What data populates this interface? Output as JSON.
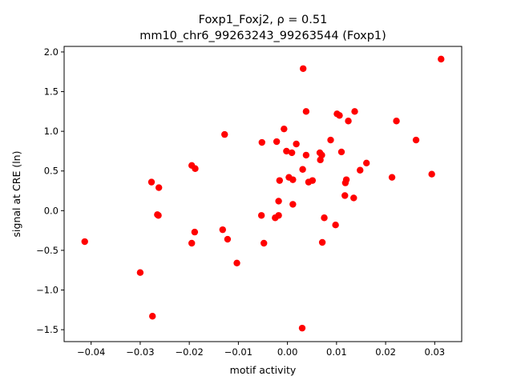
{
  "chart_data": {
    "type": "scatter",
    "title_line1": "Foxp1_Foxj2, ρ = 0.51",
    "title_line2": "mm10_chr6_99263243_99263544 (Foxp1)",
    "xlabel": "motif activity",
    "ylabel": "signal at CRE (ln)",
    "xlim": [
      -0.0455,
      0.0355
    ],
    "ylim": [
      -1.65,
      2.07
    ],
    "xticks": [
      -0.04,
      -0.03,
      -0.02,
      -0.01,
      0.0,
      0.01,
      0.02,
      0.03
    ],
    "xtick_labels": [
      "−0.04",
      "−0.03",
      "−0.02",
      "−0.01",
      "0.00",
      "0.01",
      "0.02",
      "0.03"
    ],
    "yticks": [
      -1.5,
      -1.0,
      -0.5,
      0.0,
      0.5,
      1.0,
      1.5,
      2.0
    ],
    "ytick_labels": [
      "−1.5",
      "−1.0",
      "−0.5",
      "0.0",
      "0.5",
      "1.0",
      "1.5",
      "2.0"
    ],
    "grid": false,
    "marker_color": "#ff0000",
    "series": [
      {
        "points": [
          [
            -0.0413,
            -0.39
          ],
          [
            -0.03,
            -0.78
          ],
          [
            -0.0275,
            -1.33
          ],
          [
            -0.0277,
            0.36
          ],
          [
            -0.0265,
            -0.05
          ],
          [
            -0.0263,
            -0.06
          ],
          [
            -0.0262,
            0.29
          ],
          [
            -0.0195,
            0.57
          ],
          [
            -0.0188,
            0.53
          ],
          [
            -0.0195,
            -0.41
          ],
          [
            -0.0189,
            -0.27
          ],
          [
            -0.0132,
            -0.24
          ],
          [
            -0.0128,
            0.96
          ],
          [
            -0.0122,
            -0.36
          ],
          [
            -0.0103,
            -0.66
          ],
          [
            -0.0052,
            0.86
          ],
          [
            -0.0053,
            -0.06
          ],
          [
            -0.0048,
            -0.41
          ],
          [
            -0.0025,
            -0.09
          ],
          [
            -0.0022,
            0.87
          ],
          [
            -0.0018,
            -0.06
          ],
          [
            -0.0018,
            0.12
          ],
          [
            -0.0016,
            0.38
          ],
          [
            -0.0007,
            1.03
          ],
          [
            -0.0002,
            0.75
          ],
          [
            0.0003,
            0.42
          ],
          [
            0.0009,
            0.73
          ],
          [
            0.0011,
            0.39
          ],
          [
            0.0011,
            0.08
          ],
          [
            0.0018,
            0.84
          ],
          [
            0.003,
            -1.48
          ],
          [
            0.0031,
            0.52
          ],
          [
            0.0032,
            1.79
          ],
          [
            0.0038,
            1.25
          ],
          [
            0.0038,
            0.7
          ],
          [
            0.0043,
            0.36
          ],
          [
            0.0051,
            0.38
          ],
          [
            0.0066,
            0.73
          ],
          [
            0.0067,
            0.64
          ],
          [
            0.007,
            0.7
          ],
          [
            0.0071,
            -0.4
          ],
          [
            0.0075,
            -0.09
          ],
          [
            0.0088,
            0.89
          ],
          [
            0.0098,
            -0.18
          ],
          [
            0.0101,
            1.22
          ],
          [
            0.0106,
            1.2
          ],
          [
            0.011,
            0.74
          ],
          [
            0.0117,
            0.19
          ],
          [
            0.0118,
            0.35
          ],
          [
            0.012,
            0.39
          ],
          [
            0.0124,
            1.13
          ],
          [
            0.0135,
            0.16
          ],
          [
            0.0137,
            1.25
          ],
          [
            0.0148,
            0.51
          ],
          [
            0.0161,
            0.6
          ],
          [
            0.0213,
            0.42
          ],
          [
            0.0222,
            1.13
          ],
          [
            0.0262,
            0.89
          ],
          [
            0.0294,
            0.46
          ],
          [
            0.0313,
            1.91
          ]
        ]
      }
    ]
  }
}
